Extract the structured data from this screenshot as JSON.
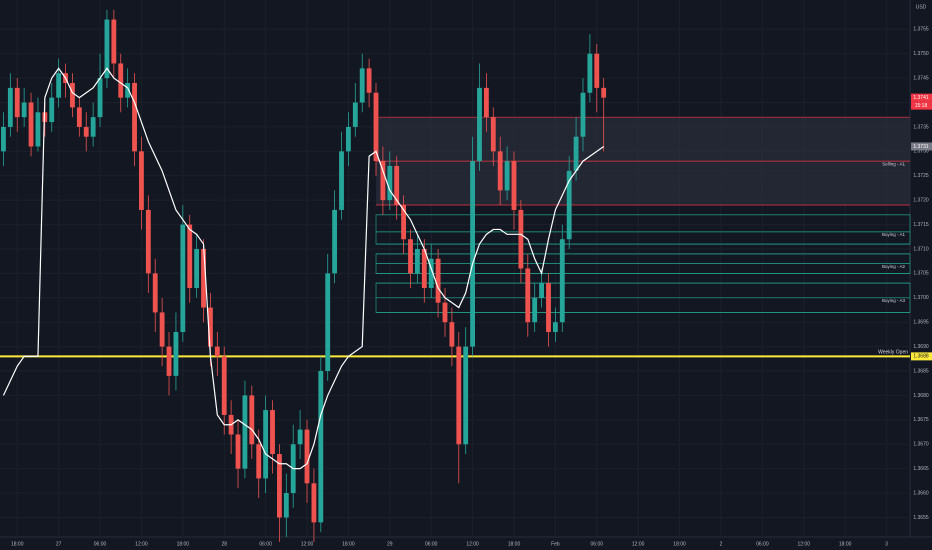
{
  "chart_data": {
    "type": "candlestick",
    "currency": "USD",
    "up_color": "#26a69a",
    "down_color": "#ef5350",
    "ma_color": "#ffffff",
    "grid": true,
    "xlim": [
      -0.5,
      131.4
    ],
    "ylim": [
      1.3651,
      1.3761
    ],
    "xticks": [
      {
        "value": 2,
        "label": "18:00"
      },
      {
        "value": 8,
        "label": "27"
      },
      {
        "value": 14,
        "label": "06:00"
      },
      {
        "value": 20,
        "label": "12:00"
      },
      {
        "value": 26,
        "label": "18:00"
      },
      {
        "value": 32,
        "label": "28"
      },
      {
        "value": 38,
        "label": "06:00"
      },
      {
        "value": 44,
        "label": "12:00"
      },
      {
        "value": 50,
        "label": "18:00"
      },
      {
        "value": 56,
        "label": "29"
      },
      {
        "value": 62,
        "label": "06:00"
      },
      {
        "value": 68,
        "label": "12:00"
      },
      {
        "value": 74,
        "label": "18:00"
      },
      {
        "value": 80,
        "label": "Feb"
      },
      {
        "value": 86,
        "label": "06:00"
      },
      {
        "value": 92,
        "label": "12:00"
      },
      {
        "value": 98,
        "label": "18:00"
      },
      {
        "value": 104,
        "label": "2"
      },
      {
        "value": 110,
        "label": "06:00"
      },
      {
        "value": 116,
        "label": "12:00"
      },
      {
        "value": 122,
        "label": "18:00"
      },
      {
        "value": 128,
        "label": "3"
      }
    ],
    "yticks": [
      1.3655,
      {
        "value": 1.366,
        "label": "1.3660"
      },
      1.3665,
      {
        "value": 1.367,
        "label": "1.3670"
      },
      1.3675,
      {
        "value": 1.368,
        "label": "1.3680"
      },
      1.3685,
      {
        "value": 1.369,
        "label": "1.3690"
      },
      1.3695,
      {
        "value": 1.37,
        "label": "1.3700"
      },
      1.3705,
      {
        "value": 1.371,
        "label": "1.3710"
      },
      1.3715,
      {
        "value": 1.372,
        "label": "1.3720"
      },
      1.3725,
      {
        "value": 1.373,
        "label": "1.3730"
      },
      1.3735,
      {
        "value": 1.374,
        "label": "1.3740"
      },
      1.3745,
      {
        "value": 1.375,
        "label": "1.3750"
      },
      1.3755
    ],
    "open": [
      1.373,
      1.3735,
      1.3743,
      1.3737,
      1.374,
      1.3731,
      1.3738,
      1.3736,
      1.3741,
      1.3746,
      1.3744,
      1.3739,
      1.3735,
      1.3733,
      1.3737,
      1.3745,
      1.3757,
      1.3748,
      1.3741,
      1.3744,
      1.373,
      1.3718,
      1.3705,
      1.3697,
      1.369,
      1.3684,
      1.3693,
      1.3715,
      1.3702,
      1.371,
      1.3698,
      1.369,
      1.3688,
      1.3676,
      1.3672,
      1.3665,
      1.368,
      1.367,
      1.3663,
      1.3677,
      1.3668,
      1.3655,
      1.366,
      1.367,
      1.3673,
      1.3662,
      1.3654,
      1.3685,
      1.3705,
      1.3718,
      1.373,
      1.3735,
      1.374,
      1.3747,
      1.3742,
      1.3728,
      1.372,
      1.3727,
      1.3719,
      1.3712,
      1.3705,
      1.371,
      1.3702,
      1.3708,
      1.3699,
      1.3695,
      1.369,
      1.367,
      1.369,
      1.3728,
      1.3743,
      1.3737,
      1.373,
      1.3722,
      1.3728,
      1.3718,
      1.3706,
      1.3695,
      1.37,
      1.3703,
      1.3693,
      1.3695,
      1.3712,
      1.3726,
      1.3733,
      1.3742,
      1.375,
      1.3743
    ],
    "high": [
      1.3738,
      1.3746,
      1.3745,
      1.3743,
      1.3742,
      1.3741,
      1.374,
      1.3744,
      1.3749,
      1.3748,
      1.3746,
      1.3741,
      1.3738,
      1.374,
      1.375,
      1.3759,
      1.3759,
      1.375,
      1.3747,
      1.3746,
      1.3733,
      1.3721,
      1.3708,
      1.37,
      1.3693,
      1.3697,
      1.3719,
      1.3717,
      1.3713,
      1.3712,
      1.3701,
      1.3693,
      1.369,
      1.3679,
      1.3675,
      1.3683,
      1.3682,
      1.3673,
      1.368,
      1.3679,
      1.367,
      1.3664,
      1.3674,
      1.3677,
      1.3675,
      1.3665,
      1.3688,
      1.3709,
      1.3722,
      1.3734,
      1.3738,
      1.3744,
      1.375,
      1.3749,
      1.3744,
      1.3731,
      1.373,
      1.3729,
      1.3721,
      1.3714,
      1.3713,
      1.3712,
      1.3711,
      1.371,
      1.3702,
      1.3698,
      1.3693,
      1.3694,
      1.3733,
      1.3748,
      1.3746,
      1.3739,
      1.3733,
      1.3731,
      1.373,
      1.372,
      1.3709,
      1.3703,
      1.3706,
      1.3705,
      1.3698,
      1.3715,
      1.3729,
      1.3737,
      1.3745,
      1.3754,
      1.3752,
      1.3745
    ],
    "low": [
      1.3727,
      1.3733,
      1.3734,
      1.3735,
      1.3729,
      1.373,
      1.3733,
      1.3734,
      1.3739,
      1.3741,
      1.3737,
      1.3733,
      1.373,
      1.3731,
      1.3735,
      1.3743,
      1.3745,
      1.3738,
      1.3739,
      1.3727,
      1.3714,
      1.3701,
      1.3693,
      1.3686,
      1.368,
      1.3681,
      1.3691,
      1.3699,
      1.37,
      1.3695,
      1.3686,
      1.3684,
      1.3672,
      1.3668,
      1.3661,
      1.3663,
      1.3667,
      1.3659,
      1.366,
      1.3664,
      1.365,
      1.3651,
      1.3657,
      1.3667,
      1.3658,
      1.365,
      1.3652,
      1.3683,
      1.3703,
      1.3716,
      1.3727,
      1.3733,
      1.3738,
      1.3739,
      1.3725,
      1.3717,
      1.3718,
      1.3716,
      1.3709,
      1.3702,
      1.3703,
      1.3699,
      1.37,
      1.3696,
      1.3692,
      1.3686,
      1.3662,
      1.3668,
      1.3688,
      1.3726,
      1.3734,
      1.3727,
      1.3719,
      1.372,
      1.3714,
      1.3703,
      1.3692,
      1.3693,
      1.3698,
      1.369,
      1.3691,
      1.3693,
      1.371,
      1.3724,
      1.373,
      1.374,
      1.3738,
      1.373
    ],
    "close": [
      1.3735,
      1.3743,
      1.3737,
      1.374,
      1.3731,
      1.3738,
      1.3736,
      1.3741,
      1.3746,
      1.3744,
      1.3739,
      1.3735,
      1.3733,
      1.3737,
      1.3745,
      1.3757,
      1.3748,
      1.3741,
      1.3744,
      1.373,
      1.3718,
      1.3705,
      1.3697,
      1.369,
      1.3684,
      1.3693,
      1.3715,
      1.3702,
      1.371,
      1.3698,
      1.369,
      1.3688,
      1.3676,
      1.3672,
      1.3665,
      1.368,
      1.367,
      1.3663,
      1.3677,
      1.3668,
      1.3655,
      1.366,
      1.367,
      1.3673,
      1.3662,
      1.3654,
      1.3685,
      1.3705,
      1.3718,
      1.373,
      1.3735,
      1.374,
      1.3747,
      1.3742,
      1.3728,
      1.372,
      1.3727,
      1.3719,
      1.3712,
      1.3705,
      1.371,
      1.3702,
      1.3708,
      1.3699,
      1.3695,
      1.369,
      1.367,
      1.369,
      1.3728,
      1.3743,
      1.3737,
      1.373,
      1.3722,
      1.3728,
      1.3718,
      1.3706,
      1.3695,
      1.37,
      1.3703,
      1.3693,
      1.3695,
      1.3712,
      1.3726,
      1.3733,
      1.3742,
      1.375,
      1.3743,
      1.3741
    ],
    "ma": [
      1.368,
      1.3683,
      1.3686,
      1.3688,
      1.3688,
      1.3688,
      1.3741,
      1.3745,
      1.3747,
      1.3745,
      1.3742,
      1.3741,
      1.3742,
      1.3743,
      1.3745,
      1.3747,
      1.3745,
      1.3744,
      1.3743,
      1.374,
      1.3736,
      1.3732,
      1.3729,
      1.3726,
      1.3722,
      1.3718,
      1.3716,
      1.3714,
      1.3713,
      1.3711,
      1.3688,
      1.3676,
      1.3674,
      1.3674,
      1.3675,
      1.3674,
      1.3673,
      1.3671,
      1.3668,
      1.3667,
      1.3666,
      1.3666,
      1.3665,
      1.3665,
      1.3666,
      1.367,
      1.3676,
      1.368,
      1.3683,
      1.3686,
      1.3688,
      1.3689,
      1.369,
      1.3729,
      1.373,
      1.3726,
      1.3722,
      1.372,
      1.3718,
      1.3716,
      1.3713,
      1.371,
      1.3706,
      1.3702,
      1.37,
      1.3699,
      1.3698,
      1.3701,
      1.3707,
      1.3711,
      1.3713,
      1.3714,
      1.3714,
      1.3713,
      1.3713,
      1.3713,
      1.3712,
      1.3708,
      1.3705,
      1.3712,
      1.3718,
      1.3721,
      1.3724,
      1.3726,
      1.3728,
      1.3729,
      1.373,
      1.3731
    ],
    "selling_zone": {
      "label": "Selling - A1",
      "start": 54,
      "lines": [
        1.3737,
        1.3728,
        1.3719
      ],
      "color": "#f23645"
    },
    "buying_zones": [
      {
        "label": "Buying - A1",
        "start": 54,
        "lines": [
          1.3717,
          1.37135,
          1.3711
        ],
        "color": "#22ab94"
      },
      {
        "label": "Buying - A2",
        "start": 54,
        "lines": [
          1.3709,
          1.3707,
          1.3705
        ],
        "color": "#22ab94"
      },
      {
        "label": "Buying - A3",
        "start": 54,
        "lines": [
          1.3703,
          1.37,
          1.3697
        ],
        "color": "#22ab94"
      }
    ],
    "weekly_open": {
      "label": "Weekly Open",
      "value": 1.3688,
      "color": "#ffeb3b"
    },
    "price_tags": [
      {
        "value": 1.3741,
        "color": "#f23645"
      },
      {
        "value": 1.3731,
        "color": "#787b86"
      }
    ],
    "countdown": "15:18"
  }
}
